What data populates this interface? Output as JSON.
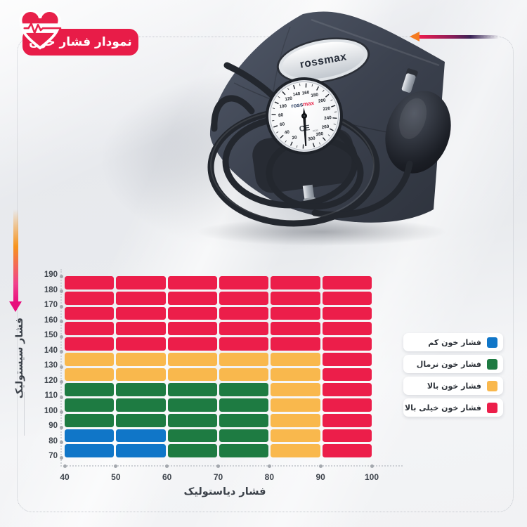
{
  "badge": {
    "label": "نمودار فشار خون",
    "color": "#e81c48"
  },
  "product": {
    "patch_brand": "rossmax",
    "dial": {
      "brand_ross": "ross",
      "brand_max": "max",
      "brand_red": "#e8274b",
      "brand_navy": "#1d3156",
      "ce": "CE",
      "ce_code": "0120",
      "min": 0,
      "max": 300,
      "numbers": [
        20,
        40,
        60,
        80,
        100,
        120,
        140,
        160,
        180,
        200,
        220,
        240,
        260,
        280,
        300
      ]
    }
  },
  "chart_data": {
    "type": "heatmap",
    "title": "نمودار فشار خون",
    "xlabel": "فشار دیاستولیک",
    "ylabel": "فشار سیستولیک",
    "x_ticks": [
      40,
      50,
      60,
      70,
      80,
      90,
      100
    ],
    "y_ticks": [
      190,
      180,
      170,
      160,
      150,
      140,
      130,
      120,
      110,
      100,
      90,
      80,
      70
    ],
    "x_range": [
      40,
      100
    ],
    "y_range": [
      70,
      190
    ],
    "grid_on": false,
    "legend_position": "right",
    "colors": {
      "low": "#1076c8",
      "normal": "#1e7b42",
      "high": "#f9b84d",
      "very_high": "#ec1e4a"
    },
    "grid_rows": [
      [
        "very_high",
        "very_high",
        "very_high",
        "very_high",
        "very_high",
        "very_high"
      ],
      [
        "very_high",
        "very_high",
        "very_high",
        "very_high",
        "very_high",
        "very_high"
      ],
      [
        "very_high",
        "very_high",
        "very_high",
        "very_high",
        "very_high",
        "very_high"
      ],
      [
        "very_high",
        "very_high",
        "very_high",
        "very_high",
        "very_high",
        "very_high"
      ],
      [
        "very_high",
        "very_high",
        "very_high",
        "very_high",
        "very_high",
        "very_high"
      ],
      [
        "high",
        "high",
        "high",
        "high",
        "high",
        "very_high"
      ],
      [
        "high",
        "high",
        "high",
        "high",
        "high",
        "very_high"
      ],
      [
        "normal",
        "normal",
        "normal",
        "normal",
        "high",
        "very_high"
      ],
      [
        "normal",
        "normal",
        "normal",
        "normal",
        "high",
        "very_high"
      ],
      [
        "normal",
        "normal",
        "normal",
        "normal",
        "high",
        "very_high"
      ],
      [
        "low",
        "low",
        "normal",
        "normal",
        "high",
        "very_high"
      ],
      [
        "low",
        "low",
        "normal",
        "normal",
        "high",
        "very_high"
      ]
    ]
  },
  "legend": {
    "items": [
      {
        "label": "فشار خون کم",
        "color_key": "low"
      },
      {
        "label": "فشار خون نرمال",
        "color_key": "normal"
      },
      {
        "label": "فشار خون بالا",
        "color_key": "high"
      },
      {
        "label": "فشار خون خیلی بالا",
        "color_key": "very_high"
      }
    ]
  }
}
